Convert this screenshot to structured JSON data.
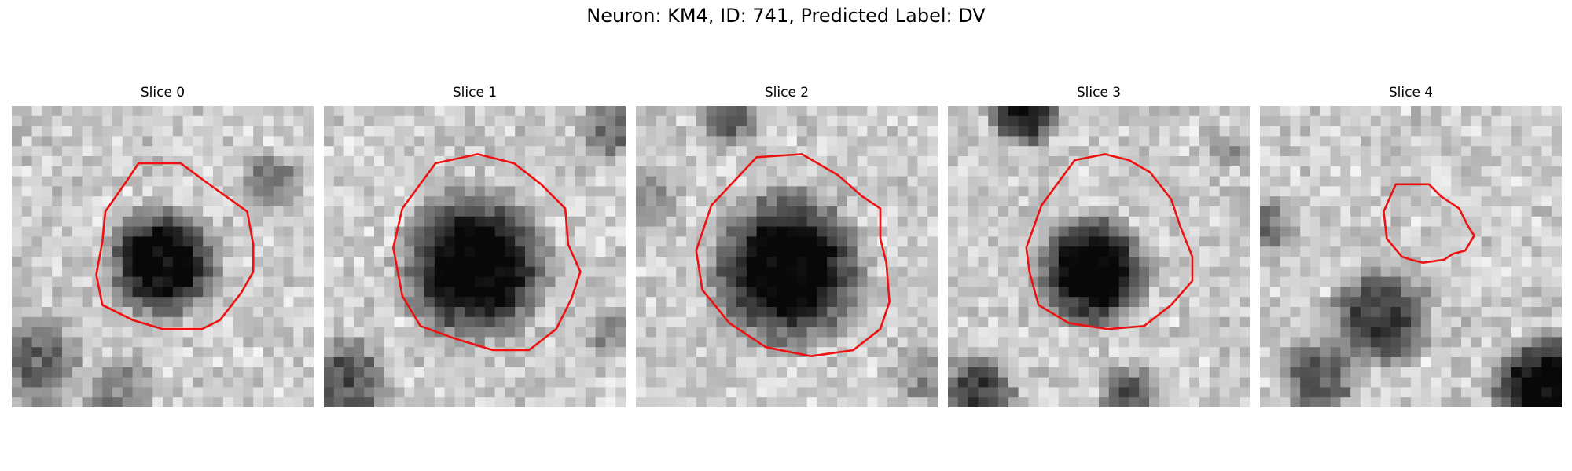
{
  "figure": {
    "title": "Neuron: KM4, ID: 741, Predicted Label: DV"
  },
  "slices": [
    {
      "title": "Slice 0"
    },
    {
      "title": "Slice 1"
    },
    {
      "title": "Slice 2"
    },
    {
      "title": "Slice 3"
    },
    {
      "title": "Slice 4"
    }
  ],
  "colors": {
    "contour": "#ee1111",
    "background": "#ffffff"
  }
}
